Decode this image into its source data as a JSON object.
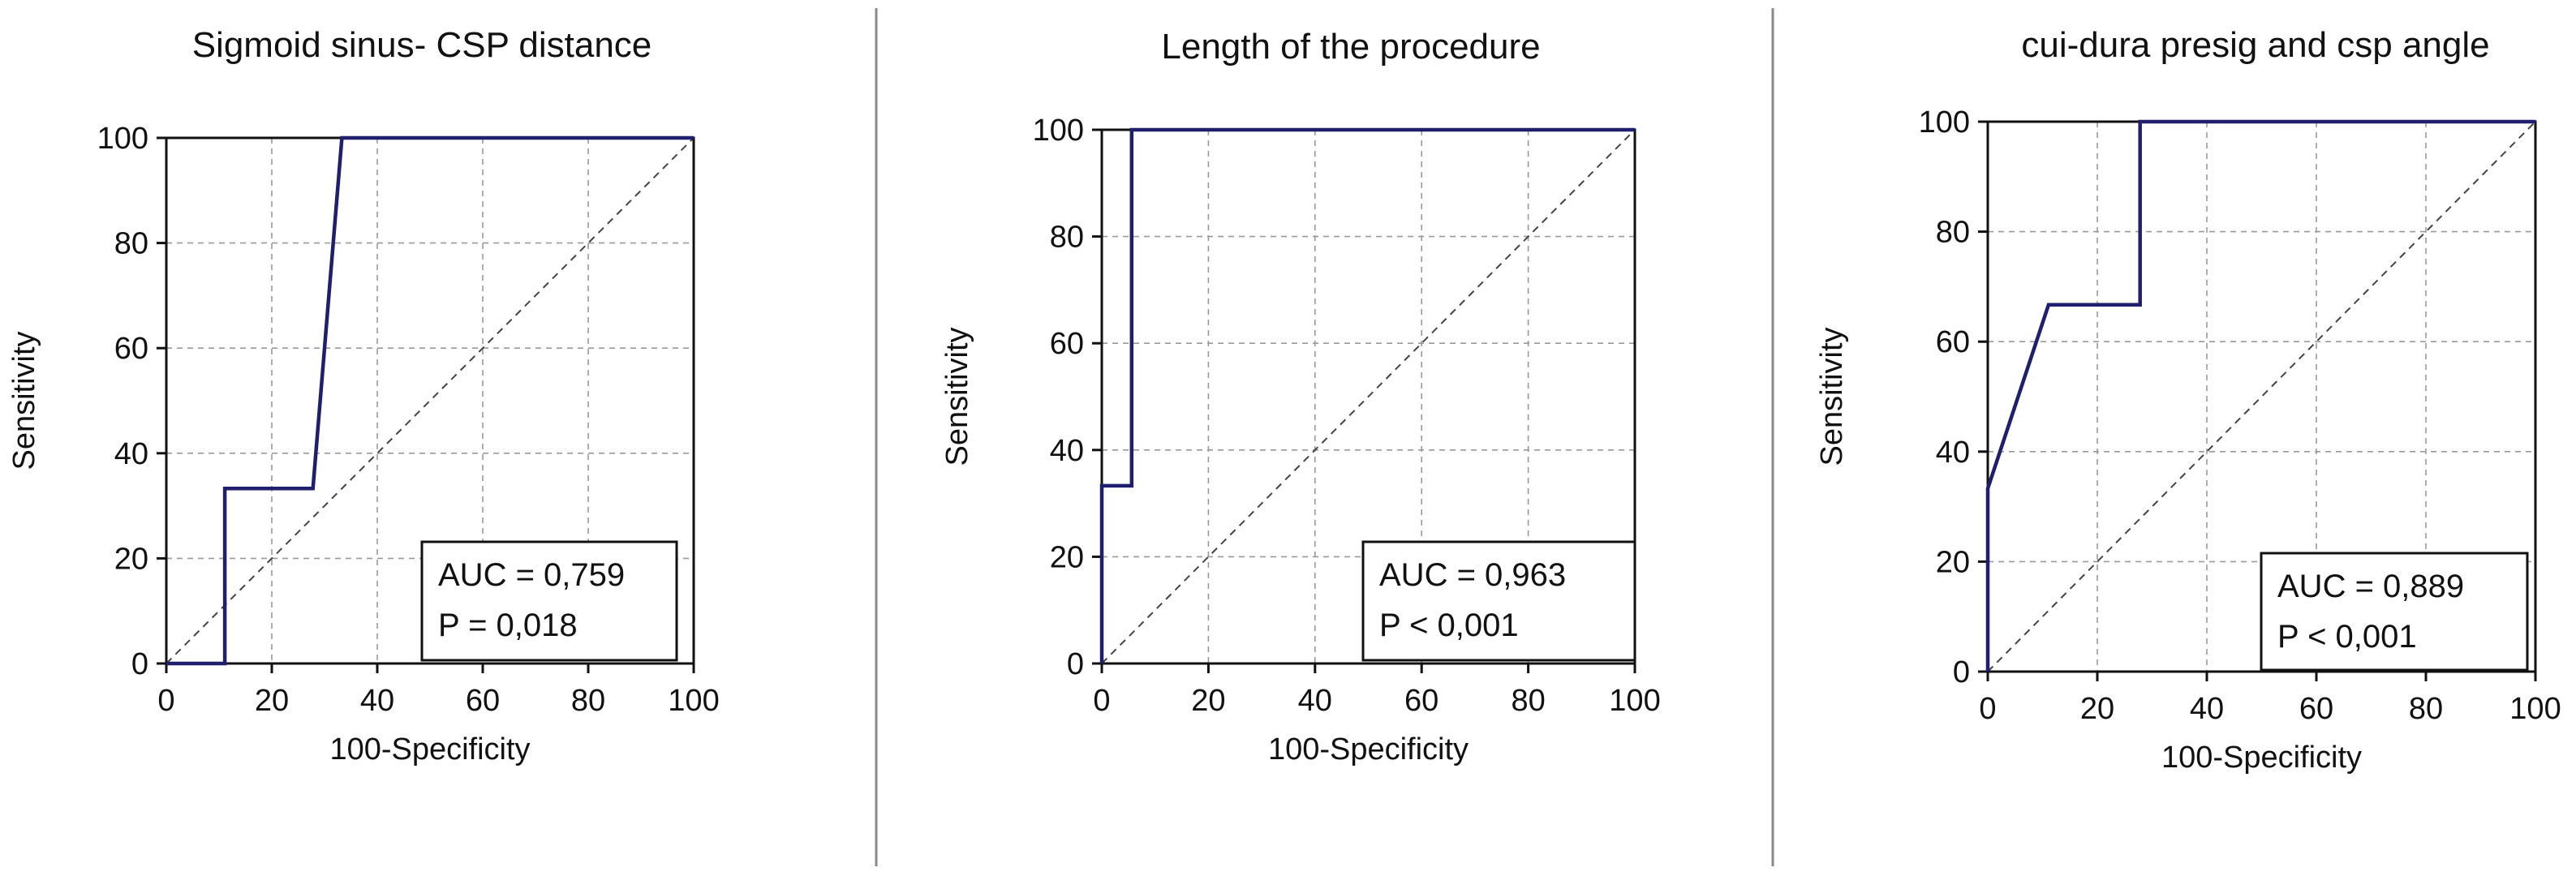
{
  "figure": {
    "colors": {
      "curve": "#1f1f6e",
      "axis": "#111111",
      "grid": "#9a9a9a",
      "diagonal": "#444444",
      "separator": "#8a8a8a"
    },
    "grid": true
  },
  "chart_data": [
    {
      "type": "line",
      "title": "Sigmoid sinus- CSP distance",
      "xlabel": "100-Specificity",
      "ylabel": "Sensitivity",
      "xlim": [
        0,
        100
      ],
      "ylim": [
        0,
        100
      ],
      "xticks": [
        "0",
        "20",
        "40",
        "60",
        "80",
        "100"
      ],
      "yticks": [
        "0",
        "20",
        "40",
        "60",
        "80",
        "100"
      ],
      "series": [
        {
          "x": [
            0,
            11.1,
            11.1,
            27.8,
            33.3,
            100
          ],
          "y": [
            0,
            0,
            33.3,
            33.3,
            100,
            100
          ]
        }
      ],
      "reference_line": {
        "x": [
          0,
          100
        ],
        "y": [
          0,
          100
        ]
      },
      "annotation": [
        "AUC = 0,759",
        "P = 0,018"
      ]
    },
    {
      "type": "line",
      "title": "Length of the procedure",
      "xlabel": "100-Specificity",
      "ylabel": "Sensitivity",
      "xlim": [
        0,
        100
      ],
      "ylim": [
        0,
        100
      ],
      "xticks": [
        "0",
        "20",
        "40",
        "60",
        "80",
        "100"
      ],
      "yticks": [
        "0",
        "20",
        "40",
        "60",
        "80",
        "100"
      ],
      "series": [
        {
          "x": [
            0,
            0,
            5.6,
            5.6,
            100
          ],
          "y": [
            0,
            33.3,
            33.3,
            100,
            100
          ]
        }
      ],
      "reference_line": {
        "x": [
          0,
          100
        ],
        "y": [
          0,
          100
        ]
      },
      "annotation": [
        "AUC = 0,963",
        "P < 0,001"
      ]
    },
    {
      "type": "line",
      "title": "cui-dura presig and csp angle",
      "xlabel": "100-Specificity",
      "ylabel": "Sensitivity",
      "xlim": [
        0,
        100
      ],
      "ylim": [
        0,
        100
      ],
      "xticks": [
        "0",
        "20",
        "40",
        "60",
        "80",
        "100"
      ],
      "yticks": [
        "0",
        "20",
        "40",
        "60",
        "80",
        "100"
      ],
      "series": [
        {
          "x": [
            0,
            0,
            11.1,
            27.8,
            27.8,
            100
          ],
          "y": [
            0,
            33.3,
            66.7,
            66.7,
            100,
            100
          ]
        }
      ],
      "reference_line": {
        "x": [
          0,
          100
        ],
        "y": [
          0,
          100
        ]
      },
      "annotation": [
        "AUC = 0,889",
        "P < 0,001"
      ]
    }
  ]
}
